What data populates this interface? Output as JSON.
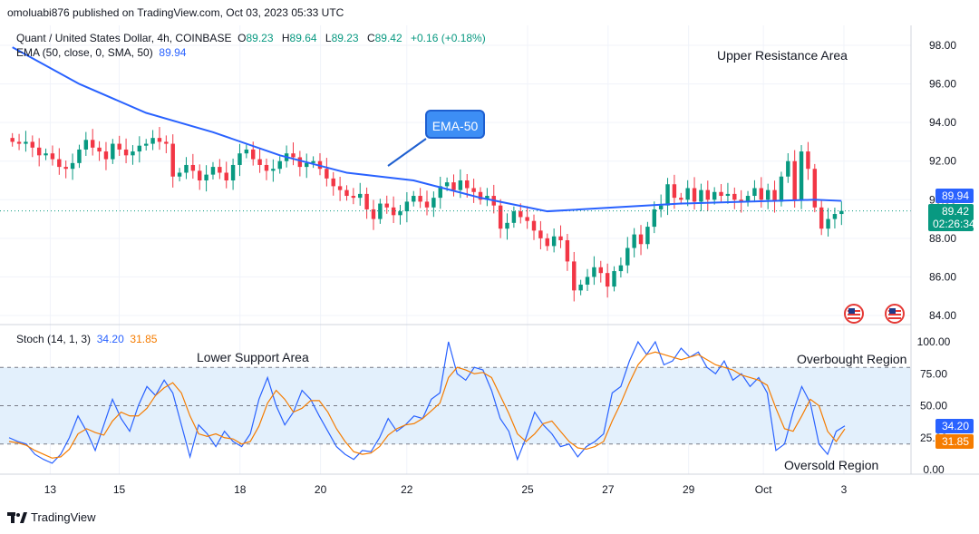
{
  "publisher_line": "omoluabi876 published on TradingView.com, Oct 03, 2023 05:33 UTC",
  "legend": {
    "symbol": "Quant / United States Dollar, 4h, COINBASE",
    "o_label": "O",
    "o": "89.23",
    "h_label": "H",
    "h": "89.64",
    "l_label": "L",
    "l": "89.23",
    "c_label": "C",
    "c": "89.42",
    "change": "+0.16 (+0.18%)",
    "ema_label": "EMA (50, close, 0, SMA, 50)",
    "ema_value": "89.94"
  },
  "stoch_legend": {
    "label": "Stoch (14, 1, 3)",
    "k": "34.20",
    "d": "31.85"
  },
  "annotations": {
    "upper_resistance": "Upper Resistance Area",
    "ema_callout": "EMA-50",
    "lower_support": "Lower Support Area",
    "overbought": "Overbought Region",
    "oversold": "Oversold Region"
  },
  "price_tags": {
    "ema": "89.94",
    "last": "89.42",
    "countdown": "02:26:34",
    "stoch_k": "34.20",
    "stoch_d": "31.85"
  },
  "footer": {
    "brand": "TradingView"
  },
  "colors": {
    "up": "#089981",
    "down": "#f23645",
    "ema": "#2962ff",
    "stoch_k": "#2962ff",
    "stoch_d": "#f57c00",
    "stoch_band": "#e3f0fc"
  },
  "chart_data": [
    {
      "type": "candlestick",
      "title": "Quant / United States Dollar, 4h, COINBASE",
      "ylim": [
        83.5,
        98.8
      ],
      "y_ticks": [
        "98.00",
        "96.00",
        "94.00",
        "92.00",
        "90.00",
        "88.00",
        "86.00",
        "84.00"
      ],
      "x_ticks": [
        "13",
        "15",
        "18",
        "20",
        "22",
        "25",
        "27",
        "29",
        "Oct",
        "3"
      ],
      "close": [
        93.0,
        92.9,
        93.0,
        92.7,
        92.3,
        92.4,
        92.1,
        91.7,
        91.6,
        91.9,
        92.6,
        93.1,
        92.7,
        92.5,
        92.1,
        92.9,
        92.6,
        92.3,
        92.5,
        92.8,
        92.9,
        93.2,
        93.0,
        92.9,
        91.2,
        91.4,
        91.8,
        91.5,
        91.0,
        91.3,
        91.7,
        91.4,
        91.0,
        91.8,
        92.4,
        92.6,
        92.1,
        91.8,
        91.5,
        91.6,
        92.0,
        92.4,
        92.2,
        91.7,
        91.9,
        92.0,
        91.6,
        91.1,
        90.7,
        90.5,
        90.2,
        90.1,
        90.3,
        89.5,
        89.0,
        89.8,
        89.6,
        89.2,
        89.4,
        89.9,
        90.2,
        89.9,
        89.6,
        90.1,
        90.7,
        90.9,
        90.5,
        91.0,
        90.6,
        90.4,
        90.0,
        90.2,
        89.7,
        88.5,
        88.8,
        89.4,
        89.1,
        88.9,
        88.4,
        88.0,
        87.6,
        88.1,
        87.9,
        86.8,
        85.3,
        85.6,
        86.0,
        86.5,
        86.2,
        85.5,
        86.3,
        86.6,
        87.5,
        88.2,
        87.7,
        88.6,
        89.5,
        89.7,
        90.8,
        90.1,
        90.0,
        90.6,
        89.9,
        90.5,
        90.0,
        90.4,
        90.2,
        90.3,
        90.0,
        89.9,
        90.2,
        90.6,
        90.0,
        90.5,
        89.9,
        91.2,
        92.0,
        90.0,
        92.5,
        91.6,
        89.6,
        88.5,
        89.0,
        89.26,
        89.42
      ],
      "open_high_low_note": "Last bar O 89.23 H 89.64 L 89.23 C 89.42"
    },
    {
      "type": "line",
      "name": "EMA (50, close, 0, SMA, 50)",
      "x": [
        0,
        10,
        20,
        30,
        40,
        50,
        60,
        70,
        80,
        90,
        100,
        110,
        120,
        124
      ],
      "values": [
        97.9,
        96.0,
        94.5,
        93.5,
        92.3,
        91.4,
        91.0,
        90.1,
        89.4,
        89.6,
        89.8,
        89.9,
        90.0,
        89.94
      ]
    },
    {
      "type": "line",
      "title": "Stoch (14, 1, 3)",
      "ylim": [
        0,
        100
      ],
      "y_ticks": [
        "100.00",
        "75.00",
        "50.00",
        "25.00",
        "0.00"
      ],
      "bands": {
        "upper": 80,
        "middle": 50,
        "lower": 20
      },
      "series": [
        {
          "name": "K",
          "values": [
            25,
            22,
            20,
            12,
            8,
            5,
            12,
            25,
            42,
            30,
            15,
            35,
            55,
            40,
            30,
            50,
            65,
            58,
            70,
            60,
            35,
            10,
            35,
            28,
            18,
            30,
            22,
            18,
            28,
            55,
            72,
            50,
            35,
            45,
            62,
            55,
            42,
            30,
            18,
            12,
            8,
            15,
            14,
            25,
            40,
            30,
            35,
            42,
            40,
            55,
            60,
            100,
            75,
            70,
            80,
            78,
            62,
            40,
            30,
            8,
            25,
            45,
            35,
            28,
            18,
            20,
            10,
            18,
            22,
            28,
            60,
            65,
            85,
            100,
            90,
            100,
            82,
            85,
            95,
            88,
            92,
            80,
            75,
            85,
            70,
            75,
            65,
            72,
            60,
            15,
            20,
            45,
            65,
            52,
            20,
            12,
            30,
            34.2
          ]
        },
        {
          "name": "D",
          "values": [
            22,
            21,
            19,
            15,
            12,
            9,
            10,
            16,
            28,
            32,
            29,
            27,
            38,
            45,
            42,
            42,
            48,
            58,
            64,
            68,
            60,
            42,
            28,
            26,
            28,
            25,
            24,
            20,
            22,
            34,
            52,
            62,
            55,
            45,
            48,
            54,
            54,
            45,
            32,
            22,
            14,
            12,
            13,
            18,
            27,
            32,
            35,
            36,
            40,
            46,
            52,
            72,
            80,
            78,
            75,
            76,
            72,
            58,
            44,
            28,
            22,
            28,
            36,
            38,
            30,
            22,
            17,
            16,
            18,
            22,
            38,
            52,
            68,
            82,
            90,
            92,
            90,
            88,
            86,
            88,
            90,
            86,
            82,
            80,
            78,
            74,
            72,
            70,
            66,
            48,
            32,
            30,
            42,
            55,
            50,
            30,
            22,
            31.85
          ]
        }
      ]
    }
  ]
}
